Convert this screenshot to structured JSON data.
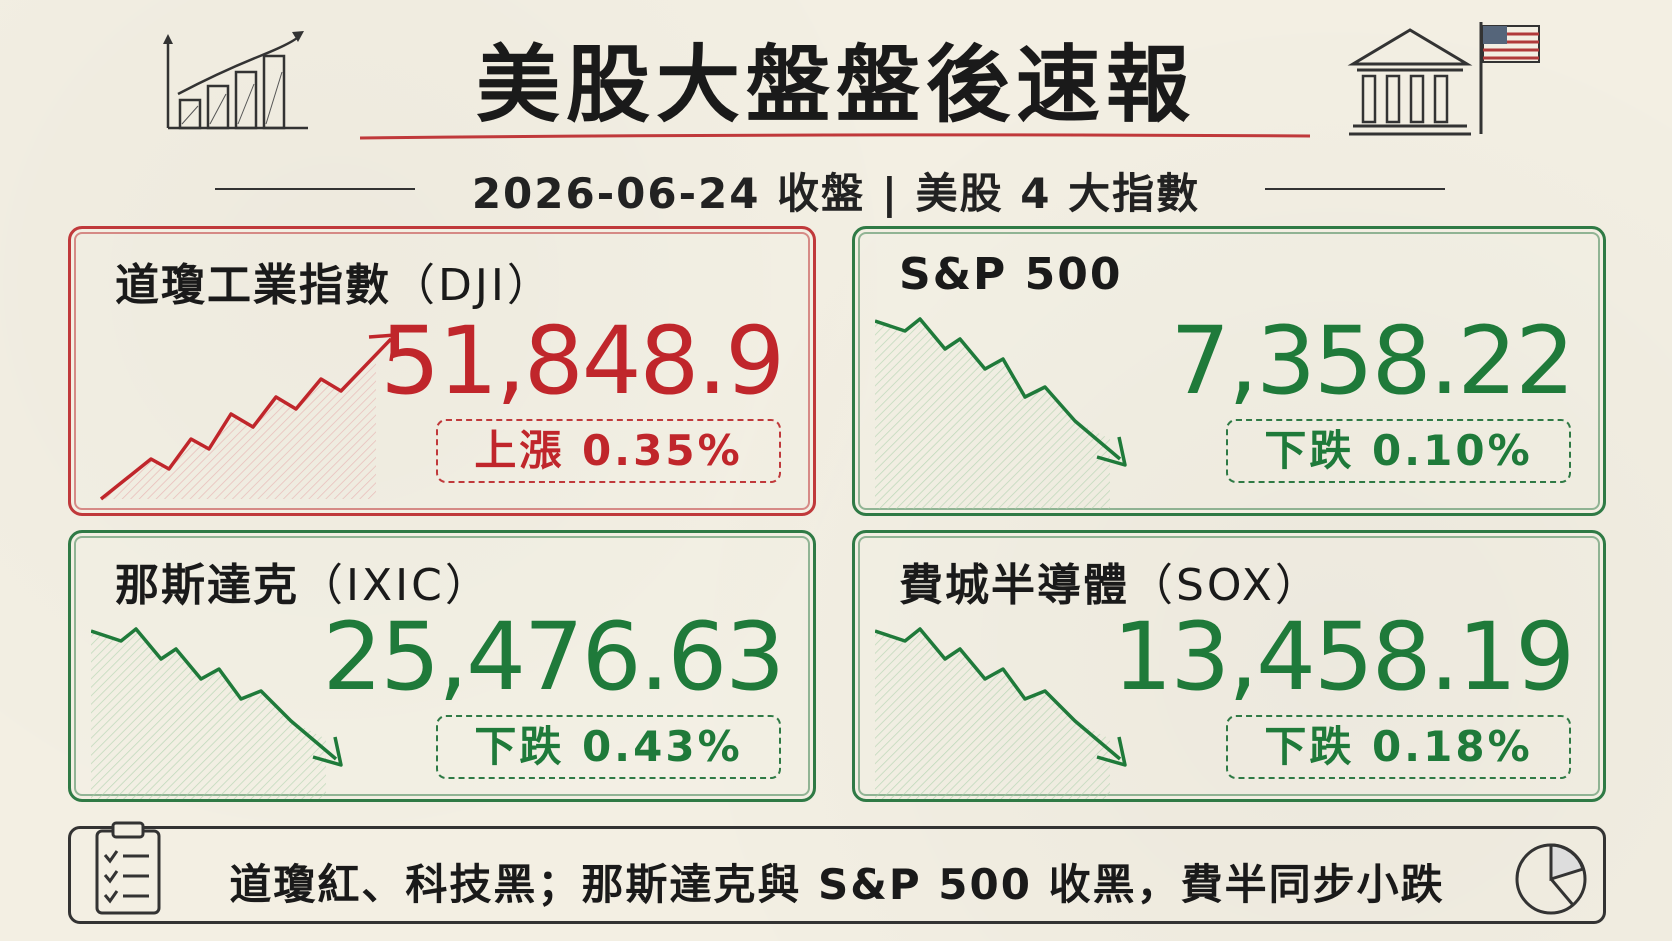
{
  "header": {
    "title": "美股大盤盤後速報",
    "subtitle": "2026-06-24 收盤 | 美股 4 大指數"
  },
  "colors": {
    "up": "#c0262b",
    "down": "#1f7a3a",
    "paper": "#f3efe3"
  },
  "icons": [
    "bar-chart-up-icon",
    "stock-exchange-building-icon",
    "us-flag-icon",
    "clipboard-checklist-icon",
    "pie-chart-icon"
  ],
  "indices": [
    {
      "name": "道瓊工業指數",
      "code": "（DJI）",
      "value": "51,848.9",
      "change": "上漲  0.35%",
      "change_pct": 0.35,
      "direction": "up"
    },
    {
      "name": "S&P 500",
      "code": "",
      "value": "7,358.22",
      "change": "下跌  0.10%",
      "change_pct": -0.1,
      "direction": "down"
    },
    {
      "name": "那斯達克",
      "code": "（IXIC）",
      "value": "25,476.63",
      "change": "下跌  0.43%",
      "change_pct": -0.43,
      "direction": "down"
    },
    {
      "name": "費城半導體",
      "code": "（SOX）",
      "value": "13,458.19",
      "change": "下跌  0.18%",
      "change_pct": -0.18,
      "direction": "down"
    }
  ],
  "footer": {
    "summary": "道瓊紅、科技黑；那斯達克與 S&P 500 收黑，費半同步小跌"
  }
}
